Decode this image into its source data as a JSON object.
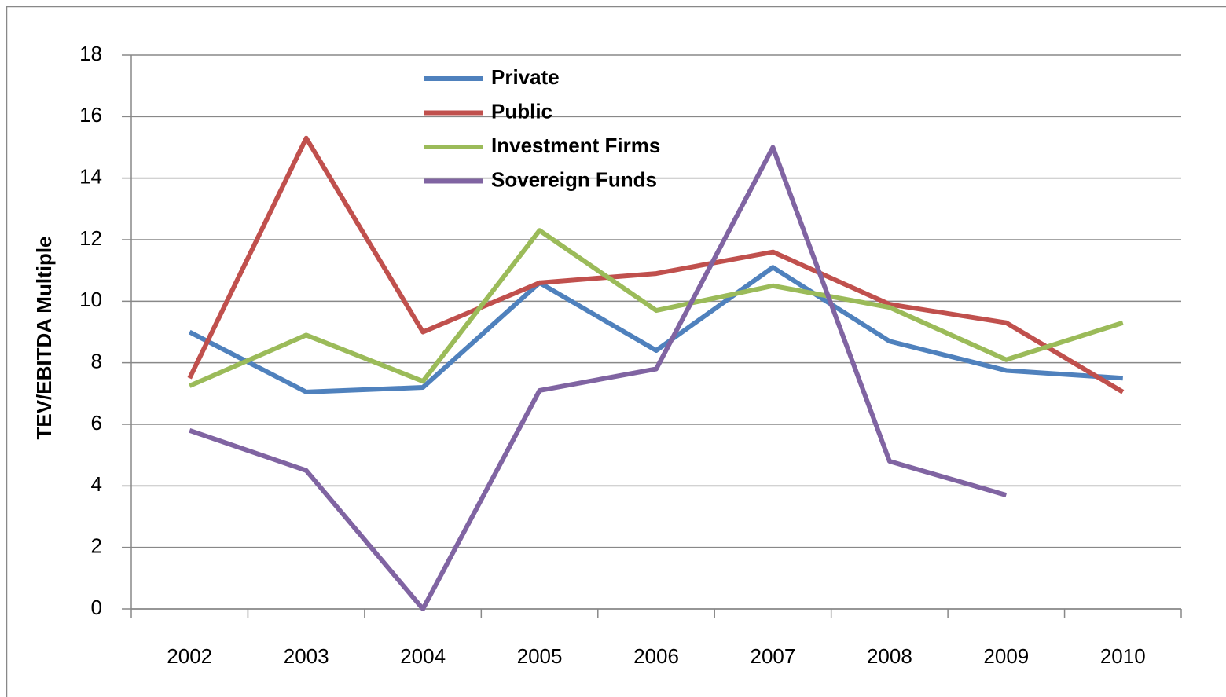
{
  "chart_data": {
    "type": "line",
    "y_label": "TEV/EBITDA Multiple",
    "categories": [
      "2002",
      "2003",
      "2004",
      "2005",
      "2006",
      "2007",
      "2008",
      "2009",
      "2010"
    ],
    "series": [
      {
        "name": "Private",
        "color": "#4f81bd",
        "values": [
          9.0,
          7.05,
          7.2,
          10.6,
          8.4,
          11.1,
          8.7,
          7.75,
          7.5
        ]
      },
      {
        "name": "Public",
        "color": "#c0504d",
        "values": [
          7.5,
          15.3,
          9.0,
          10.6,
          10.9,
          11.6,
          9.9,
          9.3,
          7.05
        ]
      },
      {
        "name": "Investment Firms",
        "color": "#9bbb59",
        "values": [
          7.25,
          8.9,
          7.4,
          12.3,
          9.7,
          10.5,
          9.8,
          8.1,
          9.3
        ]
      },
      {
        "name": "Sovereign Funds",
        "color": "#8064a2",
        "values": [
          5.8,
          4.5,
          0,
          7.1,
          7.8,
          15.0,
          4.8,
          3.7,
          null
        ]
      }
    ],
    "ylim": [
      0,
      18
    ],
    "yticks": [
      0,
      2,
      4,
      6,
      8,
      10,
      12,
      14,
      16,
      18
    ],
    "grid": true,
    "legend": "top"
  }
}
